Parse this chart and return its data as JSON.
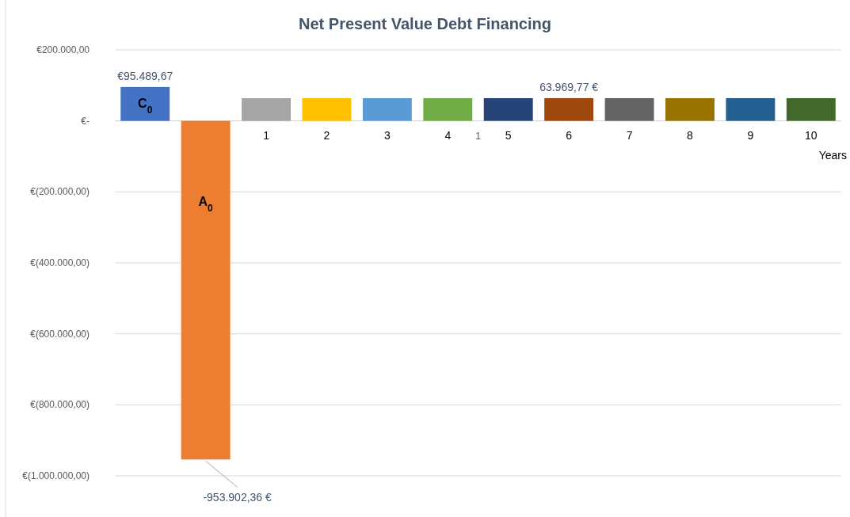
{
  "chart_data": {
    "type": "bar",
    "title": "Net Present Value Debt Financing",
    "xlabel": "Years",
    "categories": [
      null,
      null,
      "1",
      "2",
      "3",
      "4",
      "5",
      "6",
      "7",
      "8",
      "9",
      "10"
    ],
    "values": [
      95489.67,
      -953902.36,
      64000,
      64000,
      64000,
      64000,
      64000,
      63969.77,
      64000,
      64000,
      64000,
      64000
    ],
    "colors": [
      "#4472c4",
      "#ed7d31",
      "#a5a5a5",
      "#ffc000",
      "#5b9bd5",
      "#70ad47",
      "#264478",
      "#9e480e",
      "#636363",
      "#997300",
      "#255e91",
      "#43682b"
    ],
    "value_labels": [
      "€95.489,67",
      "-953.902,36 €",
      null,
      null,
      null,
      null,
      null,
      "63.969,77 €",
      null,
      null,
      null,
      null
    ],
    "annotations": [
      "C$_{0}$",
      "A$_{0}$",
      "1"
    ],
    "ylim": [
      -1000000,
      200000
    ],
    "yticks": [
      {
        "value": 200000,
        "label": "€200.000,00"
      },
      {
        "value": 0,
        "label": "€-"
      },
      {
        "value": -200000,
        "label": "€(200.000,00)"
      },
      {
        "value": -400000,
        "label": "€(400.000,00)"
      },
      {
        "value": -600000,
        "label": "€(600.000,00)"
      },
      {
        "value": -800000,
        "label": "€(800.000,00)"
      },
      {
        "value": -1000000,
        "label": "€(1.000.000,00)"
      }
    ],
    "grid": "y"
  }
}
